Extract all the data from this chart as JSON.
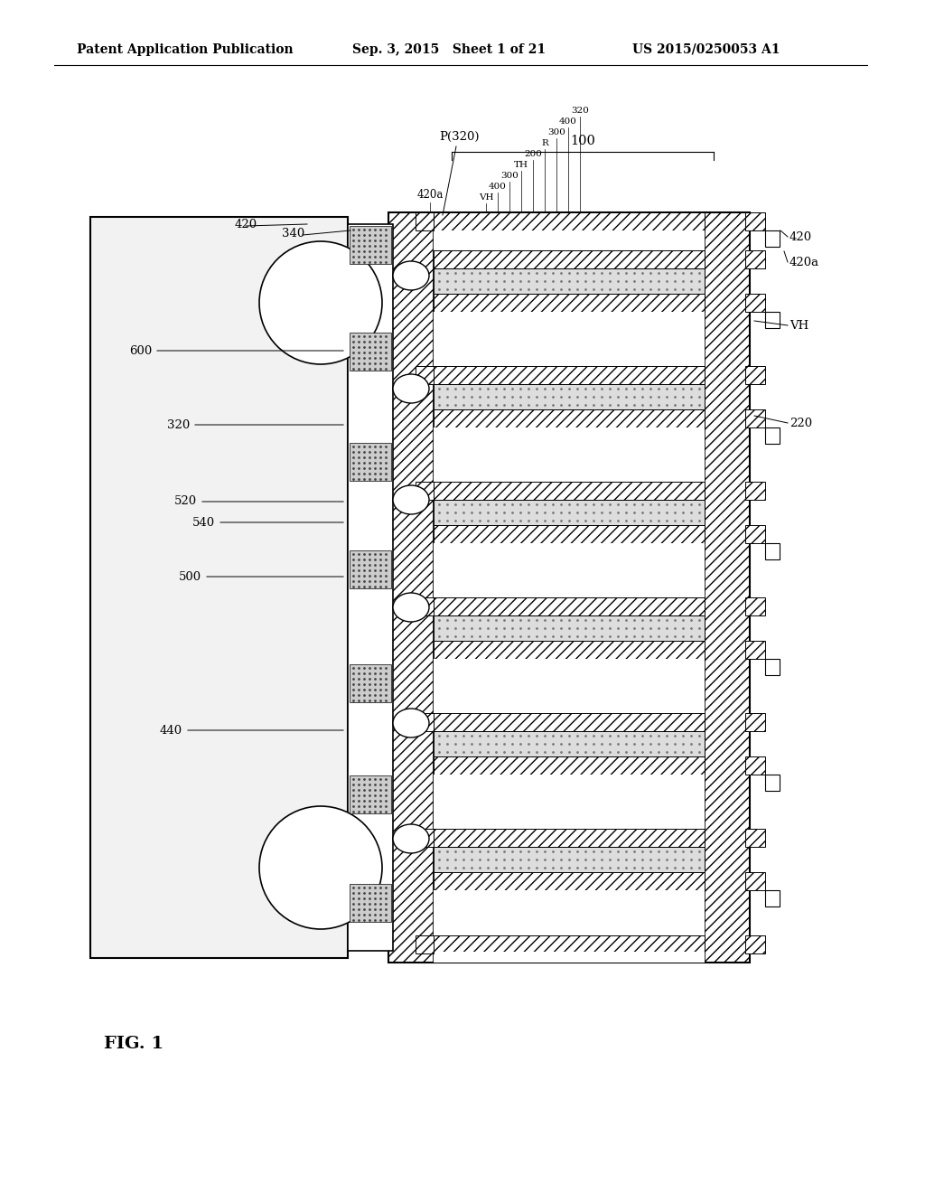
{
  "bg_color": "#ffffff",
  "header_left": "Patent Application Publication",
  "header_mid": "Sep. 3, 2015   Sheet 1 of 21",
  "header_right": "US 2015/0250053 A1",
  "fig_label": "FIG. 1",
  "title_fontsize": 11,
  "label_fontsize": 10,
  "small_fontsize": 9
}
